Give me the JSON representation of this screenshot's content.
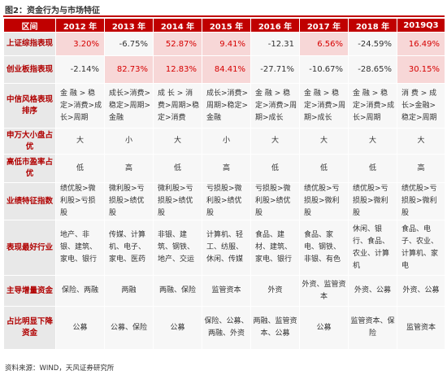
{
  "figure": {
    "title": "图2：资金行为与市场特征",
    "source": "资料来源：WIND，天风证券研究所"
  },
  "table": {
    "header": [
      "区间",
      "2012 年",
      "2013 年",
      "2014 年",
      "2015 年",
      "2016 年",
      "2017 年",
      "2018 年",
      "2019Q3"
    ],
    "rows": [
      {
        "label": "上证综指表现",
        "cells": [
          "3.20%",
          "-6.75%",
          "52.87%",
          "9.41%",
          "-12.31",
          "6.56%",
          "-24.59%",
          "16.49%"
        ]
      },
      {
        "label": "创业板指表现",
        "cells": [
          "-2.14%",
          "82.73%",
          "12.83%",
          "84.41%",
          "-27.71%",
          "-10.67%",
          "-28.65%",
          "30.15%"
        ]
      },
      {
        "label": "中信风格表现排序",
        "cells": [
          "金 融 > 稳定>消费>成长>周期",
          "成长>消费>稳定>周期>金融",
          "成 长 > 消费>周期>稳定>消费",
          "成长>消费>周期>稳定>金融",
          "金 融 > 稳定>消费>周期>成长",
          "金 融 > 稳定>消费>周期>成长",
          "金 融 > 稳定>消费>成长>周期",
          "消 费 > 成长>金融>稳定>周期"
        ]
      },
      {
        "label": "申万大小盘占优",
        "cells": [
          "大",
          "小",
          "大",
          "小",
          "大",
          "大",
          "大",
          "大"
        ]
      },
      {
        "label": "高低市盈率占优",
        "cells": [
          "低",
          "高",
          "低",
          "高",
          "低",
          "低",
          "低",
          "高"
        ]
      },
      {
        "label": "业绩特征指数",
        "cells": [
          "绩优股>微利股>亏损股",
          "微利股>亏损股>绩优股",
          "微利股>亏损股>绩优股",
          "亏损股>微利股>绩优股",
          "亏损股>微利股>绩优股",
          "绩优股>亏损股>微利股",
          "绩优股>亏损股>微利股",
          "绩优股>亏损股>微利股"
        ]
      },
      {
        "label": "表现最好行业",
        "cells": [
          "地产、非银、建筑、家电、银行",
          "传媒、计算机、电子、家电、医药",
          "非银、建筑、钢铁、地产、交运",
          "计算机、轻工、纺服、休闲、传媒",
          "食品、建材、建筑、家电、银行",
          "食品、家电、钢铁、非银、有色",
          "休闲、银行、食品、农业、计算机",
          "食品、电子、农业、计算机、家电"
        ]
      },
      {
        "label": "主导增量资金",
        "cells": [
          "保险、两融",
          "两融",
          "两融、保险",
          "监管资本",
          "外资",
          "外资、监管资本",
          "外资、公募",
          "外资、公募"
        ]
      },
      {
        "label": "占比明显下降资金",
        "cells": [
          "公募",
          "公募、保险",
          "公募",
          "保险、公募、两融、外资",
          "两融、监管资本、公募",
          "公募",
          "监管资本、保险",
          "监管资本"
        ]
      }
    ]
  },
  "colors": {
    "header_bg": "#c00000",
    "label_text": "#b00000",
    "positive_text": "#d60000",
    "highlight_bg": "#f7d7d7",
    "cell_bg": "#f7f7f7",
    "label_bg": "#e8e8e8"
  }
}
